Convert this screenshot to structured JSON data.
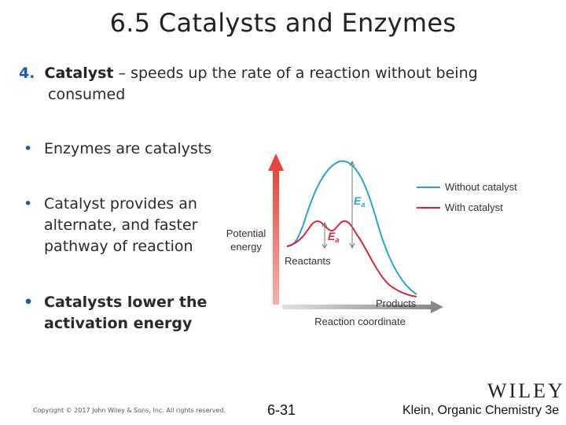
{
  "slide": {
    "title": "6.5 Catalysts and Enzymes",
    "definition": {
      "number": "4.",
      "term": "Catalyst",
      "text_line1": " – speeds up the rate of a reaction without being",
      "text_line2": "consumed"
    },
    "bullets": [
      {
        "lines": [
          "Enzymes are catalysts"
        ],
        "bold": false
      },
      {
        "lines": [
          "Catalyst provides an",
          "alternate, and faster",
          "pathway of reaction"
        ],
        "bold": false
      },
      {
        "lines": [
          "Catalysts lower the",
          "activation energy"
        ],
        "bold": true
      }
    ],
    "bullet_symbol": "•"
  },
  "diagram": {
    "y_axis_label_line1": "Potential",
    "y_axis_label_line2": "energy",
    "x_axis_label": "Reaction coordinate",
    "reactants_label": "Reactants",
    "products_label": "Products",
    "ea_symbol": "E",
    "ea_subscript": "a",
    "legend": [
      {
        "label": "Without catalyst",
        "color": "#2aa6c8"
      },
      {
        "label": "With catalyst",
        "color": "#d8283c"
      }
    ],
    "axis_color": "#e8453c"
  },
  "footer": {
    "copyright": "Copyright © 2017 John Wiley & Sons, Inc. All rights reserved.",
    "page": "6-31",
    "publisher": "WILEY",
    "book": "Klein, Organic Chemistry 3e"
  }
}
